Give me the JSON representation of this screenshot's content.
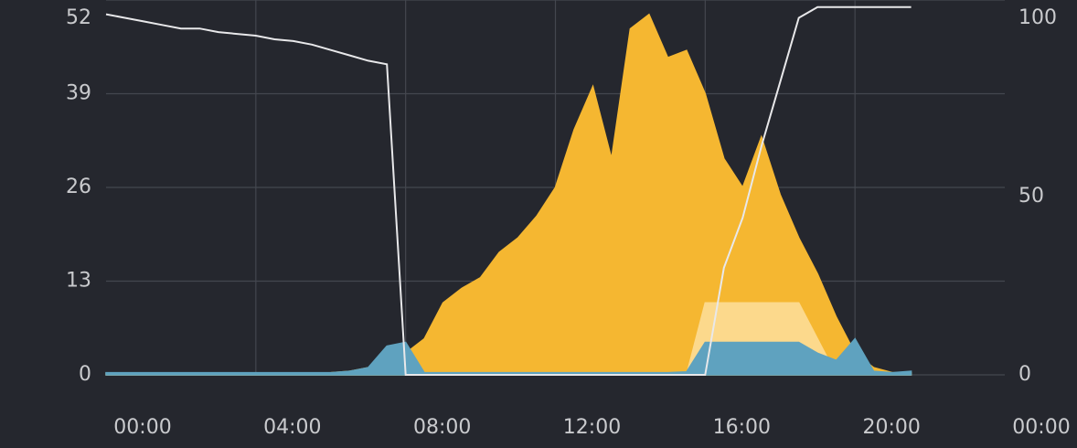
{
  "chart_data": {
    "type": "area",
    "x": [
      0,
      0.5,
      1,
      1.5,
      2,
      2.5,
      3,
      3.5,
      4,
      4.5,
      5,
      5.5,
      6,
      6.5,
      7,
      7.5,
      8,
      8.5,
      9,
      9.5,
      10,
      10.5,
      11,
      11.5,
      12,
      12.5,
      13,
      13.5,
      14,
      14.5,
      15,
      15.5,
      16,
      16.5,
      17,
      17.5,
      18,
      18.5,
      19,
      19.5,
      20,
      20.5,
      21,
      21.5
    ],
    "xlim": [
      0,
      24
    ],
    "xticks": [
      {
        "value": 0,
        "label": "00:00"
      },
      {
        "value": 4,
        "label": "04:00"
      },
      {
        "value": 8,
        "label": "08:00"
      },
      {
        "value": 12,
        "label": "12:00"
      },
      {
        "value": 16,
        "label": "16:00"
      },
      {
        "value": 20,
        "label": "20:00"
      },
      {
        "value": 24,
        "label": "00:00"
      }
    ],
    "ylim": [
      0,
      52
    ],
    "yticks": [
      0,
      13,
      26,
      39,
      52
    ],
    "y2lim": [
      0,
      105
    ],
    "y2ticks": [
      0,
      50,
      100
    ],
    "grid": true,
    "series": [
      {
        "color": "#f5b731",
        "values": [
          0.2,
          0.2,
          0.2,
          0.2,
          0.2,
          0.2,
          0.2,
          0.2,
          0.2,
          0.2,
          0.2,
          0.2,
          0.3,
          0.5,
          1,
          2.5,
          3,
          5,
          10,
          12,
          13.5,
          17,
          19,
          22,
          26,
          34,
          40,
          30,
          48,
          50,
          44,
          45,
          39,
          30,
          26,
          33,
          25,
          19,
          14,
          8,
          3,
          1,
          0.3,
          0.3
        ]
      },
      {
        "color": "#fcd98c",
        "values": [
          0,
          0,
          0,
          0,
          0,
          0,
          0,
          0,
          0,
          0,
          0,
          0,
          0,
          0,
          0,
          0,
          0,
          0,
          0,
          0,
          0,
          0,
          0,
          0,
          0,
          0,
          0,
          0,
          0,
          0,
          0,
          0,
          10,
          10,
          10,
          10,
          10,
          10,
          5,
          0,
          0,
          0,
          0,
          0
        ]
      },
      {
        "color": "#5fa2bf",
        "values": [
          0.3,
          0.3,
          0.3,
          0.3,
          0.3,
          0.3,
          0.3,
          0.3,
          0.3,
          0.3,
          0.3,
          0.3,
          0.3,
          0.5,
          1,
          4,
          4.5,
          0.3,
          0.3,
          0.3,
          0.3,
          0.3,
          0.3,
          0.3,
          0.3,
          0.3,
          0.3,
          0.3,
          0.3,
          0.3,
          0.3,
          0.4,
          4.5,
          4.5,
          4.5,
          4.5,
          4.5,
          4.5,
          3,
          2,
          5,
          0.5,
          0.3,
          0.5
        ]
      },
      {
        "color": "#e8e8ea",
        "axis": "y2",
        "values": [
          101,
          100,
          99,
          98,
          97,
          97,
          96,
          95.5,
          95,
          94,
          93.5,
          92.5,
          91,
          89.5,
          88,
          87,
          0,
          0,
          0,
          0,
          0,
          0,
          0,
          0,
          0,
          0,
          0,
          0,
          0,
          0,
          0,
          0,
          0,
          30,
          44,
          64,
          82,
          100,
          103,
          103,
          103,
          103,
          103,
          103
        ]
      }
    ]
  }
}
